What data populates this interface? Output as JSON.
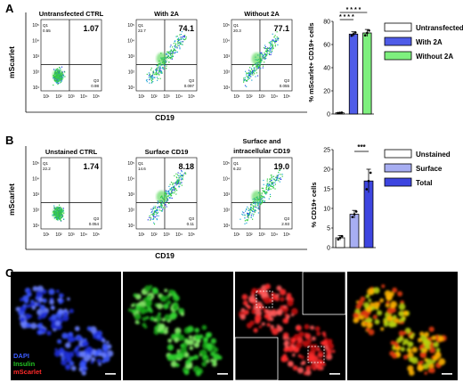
{
  "panel_a": {
    "letter": "A",
    "flow": {
      "y_label": "mScarlet",
      "x_label": "CD19",
      "y_ticks": [
        "10⁵",
        "10⁴",
        "10³",
        "10²",
        "10¹"
      ],
      "x_ticks": [
        "10¹",
        "10²",
        "10³",
        "10⁴",
        "10⁵"
      ],
      "plots": [
        {
          "title": "Untransfected CTRL",
          "pct": "1.07",
          "q1_label": "Q1",
          "q1_val": "0.55",
          "q3_label": "Q3",
          "q3_val": "0.98"
        },
        {
          "title": "With 2A",
          "pct": "74.1",
          "q1_label": "Q1",
          "q1_val": "22.7",
          "q3_label": "Q3",
          "q3_val": "0.097"
        },
        {
          "title": "Without 2A",
          "pct": "77.1",
          "q1_label": "Q1",
          "q1_val": "20.3",
          "q3_label": "Q3",
          "q3_val": "0.055"
        }
      ]
    },
    "chart_data": {
      "type": "bar",
      "categories": [
        "Untransfected",
        "With 2A",
        "Without 2A"
      ],
      "values": [
        1,
        69,
        70
      ],
      "errors": [
        0.3,
        2,
        3
      ],
      "ylabel": "% mScarlet+ CD19+ cells",
      "yticks": [
        "0",
        "20",
        "40",
        "60",
        "80"
      ],
      "ylim": [
        0,
        80
      ],
      "colors": [
        "#ffffff",
        "#4f5ce8",
        "#7ef07e"
      ],
      "legend": [
        "Untransfected",
        "With 2A",
        "Without 2A"
      ],
      "significance": [
        "* * * *",
        "* * * *"
      ]
    }
  },
  "panel_b": {
    "letter": "B",
    "flow": {
      "y_label": "mScarlet",
      "x_label": "CD19",
      "y_ticks": [
        "10⁵",
        "10⁴",
        "10³",
        "10²",
        "10¹"
      ],
      "x_ticks": [
        "10¹",
        "10²",
        "10³",
        "10⁴",
        "10⁵"
      ],
      "plots": [
        {
          "title": "Unstained CTRL",
          "pct": "1.74",
          "q1_label": "Q1",
          "q1_val": "22.2",
          "q3_label": "Q3",
          "q3_val": "0.054"
        },
        {
          "title": "Surface CD19",
          "pct": "8.18",
          "q1_label": "Q1",
          "q1_val": "14.6",
          "q3_label": "Q3",
          "q3_val": "0.11"
        },
        {
          "title": "Surface and intracellular CD19",
          "title_line1": "Surface and",
          "title_line2": "intracellular CD19",
          "pct": "19.0",
          "q1_label": "Q1",
          "q1_val": "6.22",
          "q3_label": "Q3",
          "q3_val": "2.93"
        }
      ]
    },
    "chart_data": {
      "type": "bar",
      "categories": [
        "Unstained",
        "Surface",
        "Total"
      ],
      "values": [
        2.5,
        8.5,
        17
      ],
      "errors": [
        0.6,
        1,
        3
      ],
      "ylabel": "% CD19+ cells",
      "yticks": [
        "0",
        "5",
        "10",
        "15",
        "20",
        "25"
      ],
      "ylim": [
        0,
        25
      ],
      "colors": [
        "#ffffff",
        "#a7aef2",
        "#3d45e0"
      ],
      "legend": [
        "Unstained",
        "Surface",
        "Total"
      ],
      "significance": [
        "***"
      ]
    }
  },
  "panel_c": {
    "letter": "C",
    "legend": [
      {
        "label": "DAPI",
        "color": "#3c5cff"
      },
      {
        "label": "Insulin",
        "color": "#22c222"
      },
      {
        "label": "mScarlet",
        "color": "#ff2a2a"
      }
    ],
    "images": [
      "DAPI channel",
      "Insulin channel",
      "mScarlet channel",
      "Merged"
    ]
  }
}
